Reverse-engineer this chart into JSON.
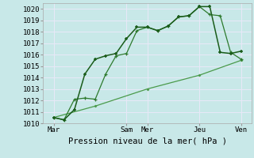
{
  "title": "",
  "xlabel": "Pression niveau de la mer( hPa )",
  "ylabel": "",
  "bg_color": "#c8e8e8",
  "grid_color": "#e8e8f8",
  "line_color_1": "#1a5c1a",
  "line_color_2": "#2d7a2d",
  "line_color_3": "#4a9a4a",
  "ylim": [
    1010,
    1020.5
  ],
  "yticks": [
    1010,
    1011,
    1012,
    1013,
    1014,
    1015,
    1016,
    1017,
    1018,
    1019,
    1020
  ],
  "xlim": [
    0,
    20
  ],
  "xtick_pos": [
    1,
    8,
    10,
    15,
    19
  ],
  "xtick_labels": [
    "Mar",
    "Sam",
    "Mer",
    "Jeu",
    "Ven"
  ],
  "series1_x": [
    1,
    2,
    3,
    4,
    5,
    6,
    7,
    8,
    9,
    10,
    11,
    12,
    13,
    14,
    15,
    16,
    17,
    18,
    19
  ],
  "series1_y": [
    1010.5,
    1010.3,
    1011.2,
    1014.3,
    1015.6,
    1015.9,
    1016.1,
    1017.4,
    1018.4,
    1018.4,
    1018.1,
    1018.5,
    1019.3,
    1019.4,
    1020.2,
    1020.2,
    1016.2,
    1016.1,
    1016.3
  ],
  "series2_x": [
    1,
    2,
    3,
    4,
    5,
    6,
    7,
    8,
    9,
    10,
    11,
    12,
    13,
    14,
    15,
    16,
    17,
    18,
    19
  ],
  "series2_y": [
    1010.5,
    1010.3,
    1012.1,
    1012.2,
    1012.1,
    1014.3,
    1015.9,
    1016.1,
    1018.1,
    1018.4,
    1018.1,
    1018.5,
    1019.3,
    1019.4,
    1020.2,
    1019.5,
    1019.4,
    1016.2,
    1015.6
  ],
  "series3_x": [
    1,
    5,
    10,
    15,
    19
  ],
  "series3_y": [
    1010.5,
    1011.5,
    1013.0,
    1014.2,
    1015.5
  ],
  "fontsize_label": 7.5,
  "fontsize_tick": 6.5
}
